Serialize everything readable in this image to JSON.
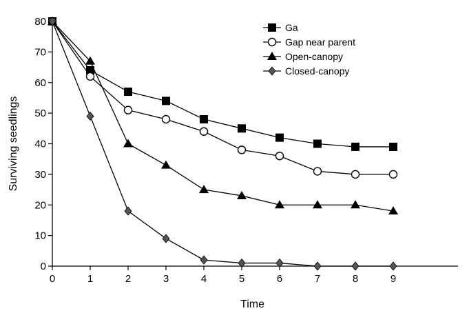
{
  "chart_data": {
    "type": "line",
    "xlabel": "Time",
    "ylabel": "Surviving seedlings",
    "xlim": [
      0,
      10
    ],
    "ylim": [
      0,
      80
    ],
    "x_ticks": [
      0,
      1,
      2,
      3,
      4,
      5,
      6,
      7,
      8,
      9
    ],
    "y_ticks": [
      0,
      10,
      20,
      30,
      40,
      50,
      60,
      70,
      80
    ],
    "grid": false,
    "legend_position": "top-right",
    "x": [
      0,
      1,
      2,
      3,
      4,
      5,
      6,
      7,
      8,
      9
    ],
    "series": [
      {
        "name": "Ga",
        "marker": "square-filled",
        "color": "#000000",
        "values": [
          80,
          64,
          57,
          54,
          48,
          45,
          42,
          40,
          39,
          39
        ]
      },
      {
        "name": "Gap near parent",
        "marker": "circle-open",
        "color": "#000000",
        "values": [
          80,
          62,
          51,
          48,
          44,
          38,
          36,
          31,
          30,
          30
        ]
      },
      {
        "name": "Open-canopy",
        "marker": "triangle-filled",
        "color": "#000000",
        "values": [
          80,
          67,
          40,
          33,
          25,
          23,
          20,
          20,
          20,
          18
        ]
      },
      {
        "name": "Closed-canopy",
        "marker": "diamond-filled",
        "color": "#000000",
        "values": [
          80,
          49,
          18,
          9,
          2,
          1,
          1,
          0,
          0,
          0
        ]
      }
    ]
  }
}
